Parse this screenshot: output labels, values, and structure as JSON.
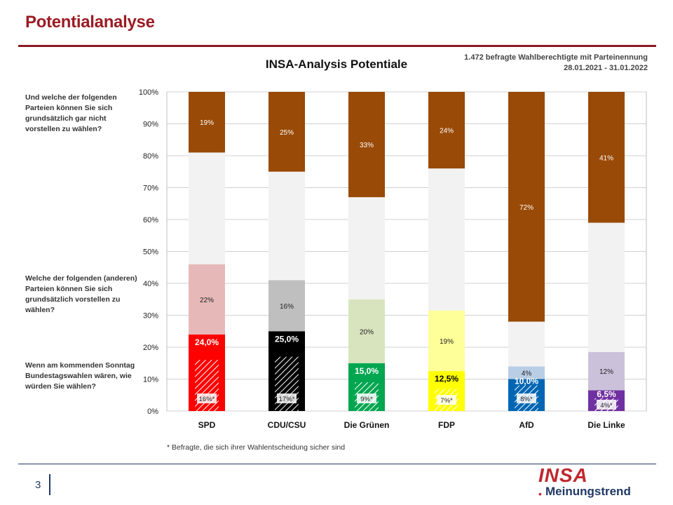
{
  "page": {
    "title": "Potentialanalyse",
    "page_number": "3",
    "footnote": "* Befragte, die sich ihrer Wahlentscheidung sicher sind",
    "logo_main": "INSA",
    "logo_dot": "•",
    "logo_sub": "Meinungstrend"
  },
  "sample_note": {
    "line1": "1.472 befragte Wahlberechtigte mit Parteinennung",
    "line2": "28.01.2021 - 31.01.2022"
  },
  "questions": {
    "q_rejection": "Und welche der folgenden Parteien können Sie sich grundsätzlich gar nicht vorstellen zu wählen?",
    "q_potential": "Welche der folgenden (anderen) Parteien können Sie sich grundsätzlich vorstellen zu wählen?",
    "q_vote": "Wenn am kommenden Sonntag Bundestagswahlen wären, wie würden Sie wählen?"
  },
  "chart_data": {
    "type": "bar",
    "stacked": true,
    "title": "INSA-Analysis Potentiale",
    "ylim": [
      0,
      100
    ],
    "yticks": [
      "0%",
      "10%",
      "20%",
      "30%",
      "40%",
      "50%",
      "60%",
      "70%",
      "80%",
      "90%",
      "100%"
    ],
    "grid": true,
    "categories": [
      "SPD",
      "CDU/CSU",
      "Die Grünen",
      "FDP",
      "AfD",
      "Die Linke"
    ],
    "colors": {
      "rejection": "#994a06",
      "neutral": "#f2f2f2",
      "party": [
        "#ff0000",
        "#000000",
        "#00a650",
        "#ffff00",
        "#0066b3",
        "#7030a0"
      ],
      "potential": [
        "#e6b9b8",
        "#bfbfbf",
        "#d7e4bd",
        "#ffff99",
        "#b9cde5",
        "#ccc1da"
      ]
    },
    "series": [
      {
        "key": "vote",
        "values": [
          24.0,
          25.0,
          15.0,
          12.5,
          10.0,
          6.5
        ],
        "labels": [
          "24,0%",
          "25,0%",
          "15,0%",
          "12,5%",
          "10,0%",
          "6,5%"
        ]
      },
      {
        "key": "sure",
        "values": [
          16,
          17,
          9,
          7,
          8,
          4
        ],
        "labels": [
          "16%*",
          "17%*",
          "9%*",
          "7%*",
          "8%*",
          "4%*"
        ]
      },
      {
        "key": "potential",
        "values": [
          22,
          16,
          20,
          19,
          4,
          12
        ],
        "labels": [
          "22%",
          "16%",
          "20%",
          "19%",
          "4%",
          "12%"
        ]
      },
      {
        "key": "rejection",
        "values": [
          19,
          25,
          33,
          24,
          72,
          41
        ],
        "labels": [
          "19%",
          "25%",
          "33%",
          "24%",
          "72%",
          "41%"
        ]
      }
    ]
  }
}
